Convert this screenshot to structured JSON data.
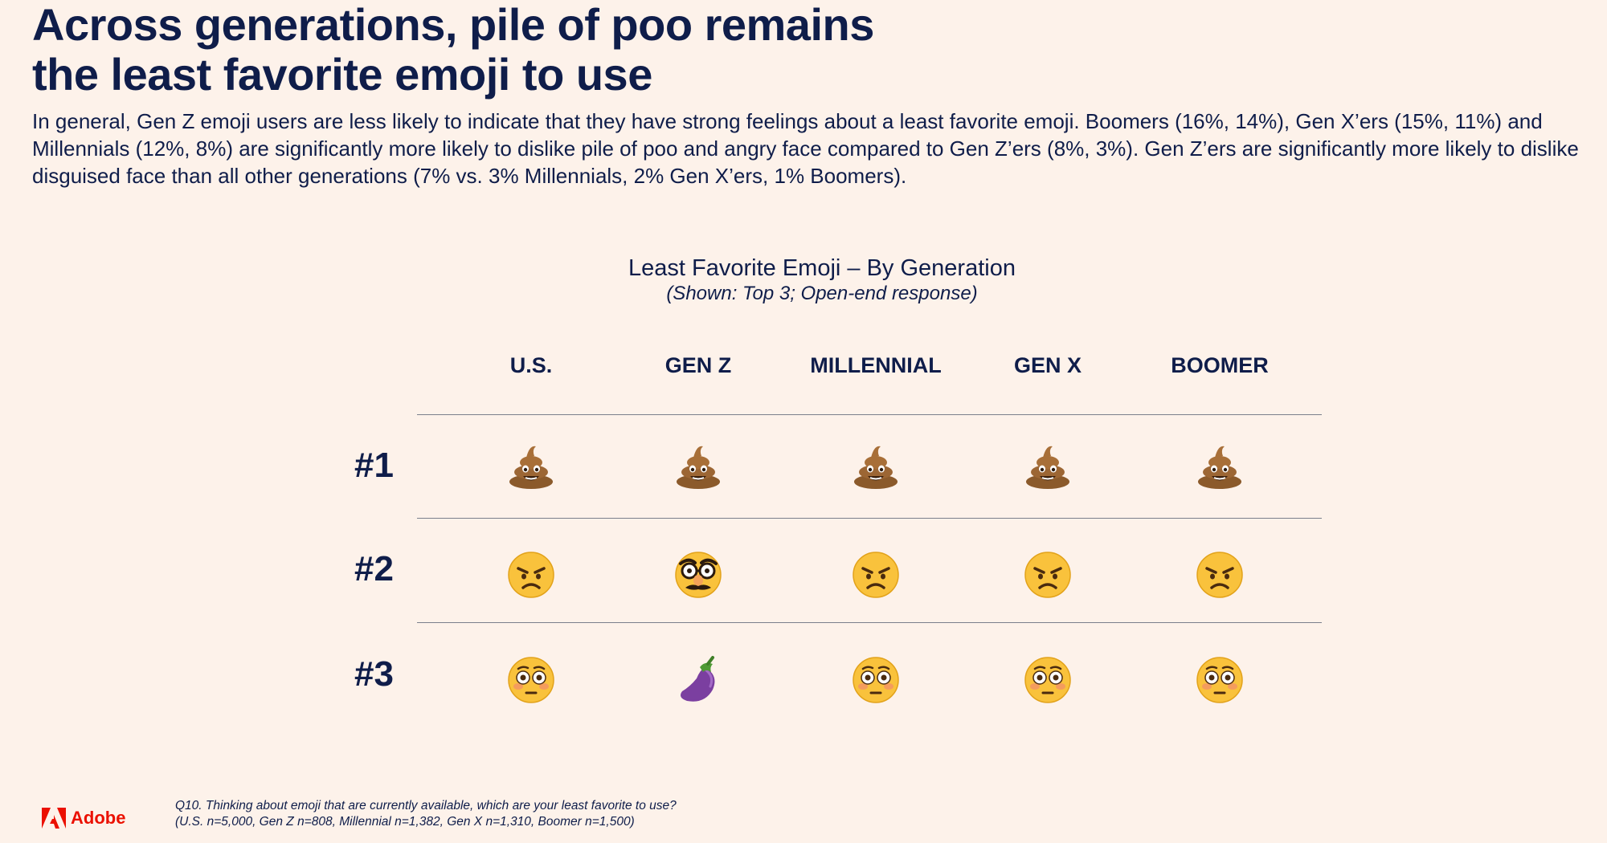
{
  "title_line1": "Across generations, pile of poo remains",
  "title_line2": "the least favorite emoji to use",
  "subtitle": "In general, Gen Z emoji users are less likely to indicate that they have strong feelings about a least favorite emoji. Boomers (16%, 14%), Gen X’ers (15%, 11%) and Millennials (12%, 8%) are significantly more likely to dislike pile of poo and angry face compared to Gen Z’ers (8%, 3%). Gen Z’ers are significantly more likely to dislike disguised face than all other generations (7% vs. 3% Millennials, 2% Gen X’ers, 1% Boomers).",
  "chart": {
    "title": "Least Favorite Emoji – By Generation",
    "subtitle": "(Shown: Top 3; Open-end response)",
    "columns": [
      "U.S.",
      "GEN Z",
      "MILLENNIAL",
      "GEN X",
      "BOOMER"
    ],
    "rows": [
      {
        "label": "#1",
        "emojis": [
          "pile-of-poo",
          "pile-of-poo",
          "pile-of-poo",
          "pile-of-poo",
          "pile-of-poo"
        ]
      },
      {
        "label": "#2",
        "emojis": [
          "angry-face",
          "disguised-face",
          "angry-face",
          "angry-face",
          "angry-face"
        ]
      },
      {
        "label": "#3",
        "emojis": [
          "flushed-face",
          "eggplant",
          "flushed-face",
          "flushed-face",
          "flushed-face"
        ]
      }
    ]
  },
  "logo_text": "Adobe",
  "footnote_line1": "Q10. Thinking about emoji that are currently available, which are your least favorite to use?",
  "footnote_line2": "(U.S. n=5,000, Gen Z n=808, Millennial n=1,382, Gen X n=1,310, Boomer n=1,500)",
  "colors": {
    "text": "#0f1d4a",
    "background": "#fdf2ea",
    "brand": "#eb1000"
  }
}
